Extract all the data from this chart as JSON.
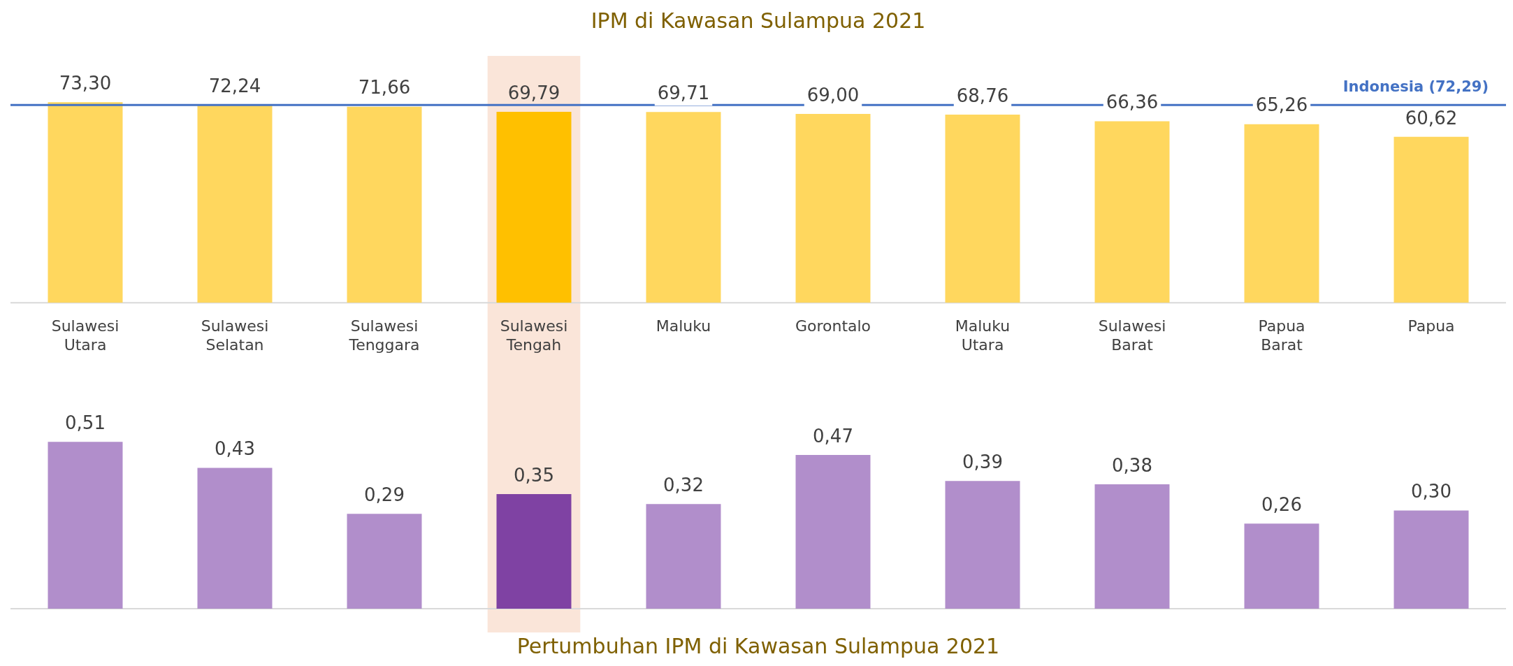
{
  "chart_data": [
    {
      "type": "bar",
      "title": "IPM di Kawasan Sulampua 2021",
      "categories": [
        "Sulawesi Utara",
        "Sulawesi Selatan",
        "Sulawesi Tenggara",
        "Sulawesi Tengah",
        "Maluku",
        "Gorontalo",
        "Maluku Utara",
        "Sulawesi Barat",
        "Papua Barat",
        "Papua"
      ],
      "values": [
        73.3,
        72.24,
        71.66,
        69.79,
        69.71,
        69.0,
        68.76,
        66.36,
        65.26,
        60.62
      ],
      "value_labels": [
        "73,30",
        "72,24",
        "71,66",
        "69,79",
        "69,71",
        "69,00",
        "68,76",
        "66,36",
        "65,26",
        "60,62"
      ],
      "colors": [
        "#ffd75e",
        "#ffd75e",
        "#ffd75e",
        "#ffc000",
        "#ffd75e",
        "#ffd75e",
        "#ffd75e",
        "#ffd75e",
        "#ffd75e",
        "#ffd75e"
      ],
      "ref_lines": [
        {
          "axis": "y",
          "value": 72.29,
          "label": "Indonesia (72,29)",
          "color": "#4472c4"
        }
      ],
      "bands": [
        {
          "axis": "x",
          "from": "Sulawesi Tengah",
          "to": "Sulawesi Tengah",
          "color": "#fae5d9"
        }
      ],
      "tick_labels": "x",
      "grid": false,
      "legend": false
    },
    {
      "type": "bar",
      "title": "Pertumbuhan IPM di Kawasan Sulampua 2021",
      "categories": [
        "Sulawesi Utara",
        "Sulawesi Selatan",
        "Sulawesi Tenggara",
        "Sulawesi Tengah",
        "Maluku",
        "Gorontalo",
        "Maluku Utara",
        "Sulawesi Barat",
        "Papua Barat",
        "Papua"
      ],
      "values": [
        0.51,
        0.43,
        0.29,
        0.35,
        0.32,
        0.47,
        0.39,
        0.38,
        0.26,
        0.3
      ],
      "value_labels": [
        "0,51",
        "0,43",
        "0,29",
        "0,35",
        "0,32",
        "0,47",
        "0,39",
        "0,38",
        "0,26",
        "0,30"
      ],
      "colors": [
        "#b18ecb",
        "#b18ecb",
        "#b18ecb",
        "#7f42a3",
        "#b18ecb",
        "#b18ecb",
        "#b18ecb",
        "#b18ecb",
        "#b18ecb",
        "#b18ecb"
      ],
      "bands": [
        {
          "axis": "x",
          "from": "Sulawesi Tengah",
          "to": "Sulawesi Tengah",
          "color": "#fae5d9"
        }
      ],
      "tick_labels": false,
      "grid": false,
      "legend": false
    }
  ]
}
